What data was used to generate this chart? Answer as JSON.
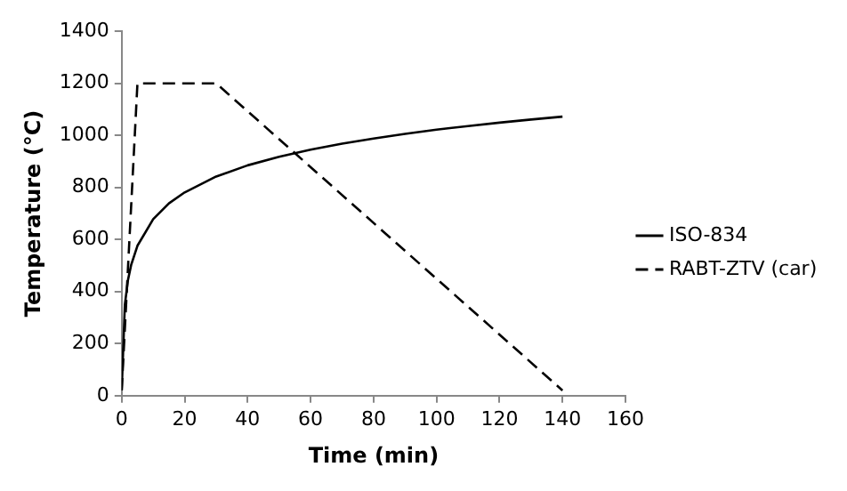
{
  "chart_data": {
    "type": "line",
    "xlabel": "Time (min)",
    "ylabel": "Temperature (°C)",
    "xlim": [
      0,
      160
    ],
    "xticks": [
      0,
      20,
      40,
      60,
      80,
      100,
      120,
      140,
      160
    ],
    "ylim": [
      0,
      1400
    ],
    "yticks": [
      0,
      200,
      400,
      600,
      800,
      1000,
      1200,
      1400
    ],
    "grid": false,
    "legend": "right",
    "marker": "none",
    "series": [
      {
        "name": "ISO-834",
        "color": "#000000",
        "line_style": "solid",
        "x": [
          0,
          1,
          2,
          3,
          5,
          10,
          15,
          20,
          30,
          40,
          50,
          60,
          70,
          80,
          90,
          100,
          110,
          120,
          130,
          140
        ],
        "values": [
          20,
          349,
          445,
          502,
          576,
          678,
          739,
          781,
          842,
          885,
          918,
          945,
          968,
          988,
          1006,
          1022,
          1036,
          1049,
          1061,
          1072
        ]
      },
      {
        "name": "RABT-ZTV (car)",
        "color": "#000000",
        "line_style": "dashed",
        "x": [
          0,
          5,
          30,
          140
        ],
        "values": [
          20,
          1200,
          1200,
          20
        ]
      }
    ]
  }
}
